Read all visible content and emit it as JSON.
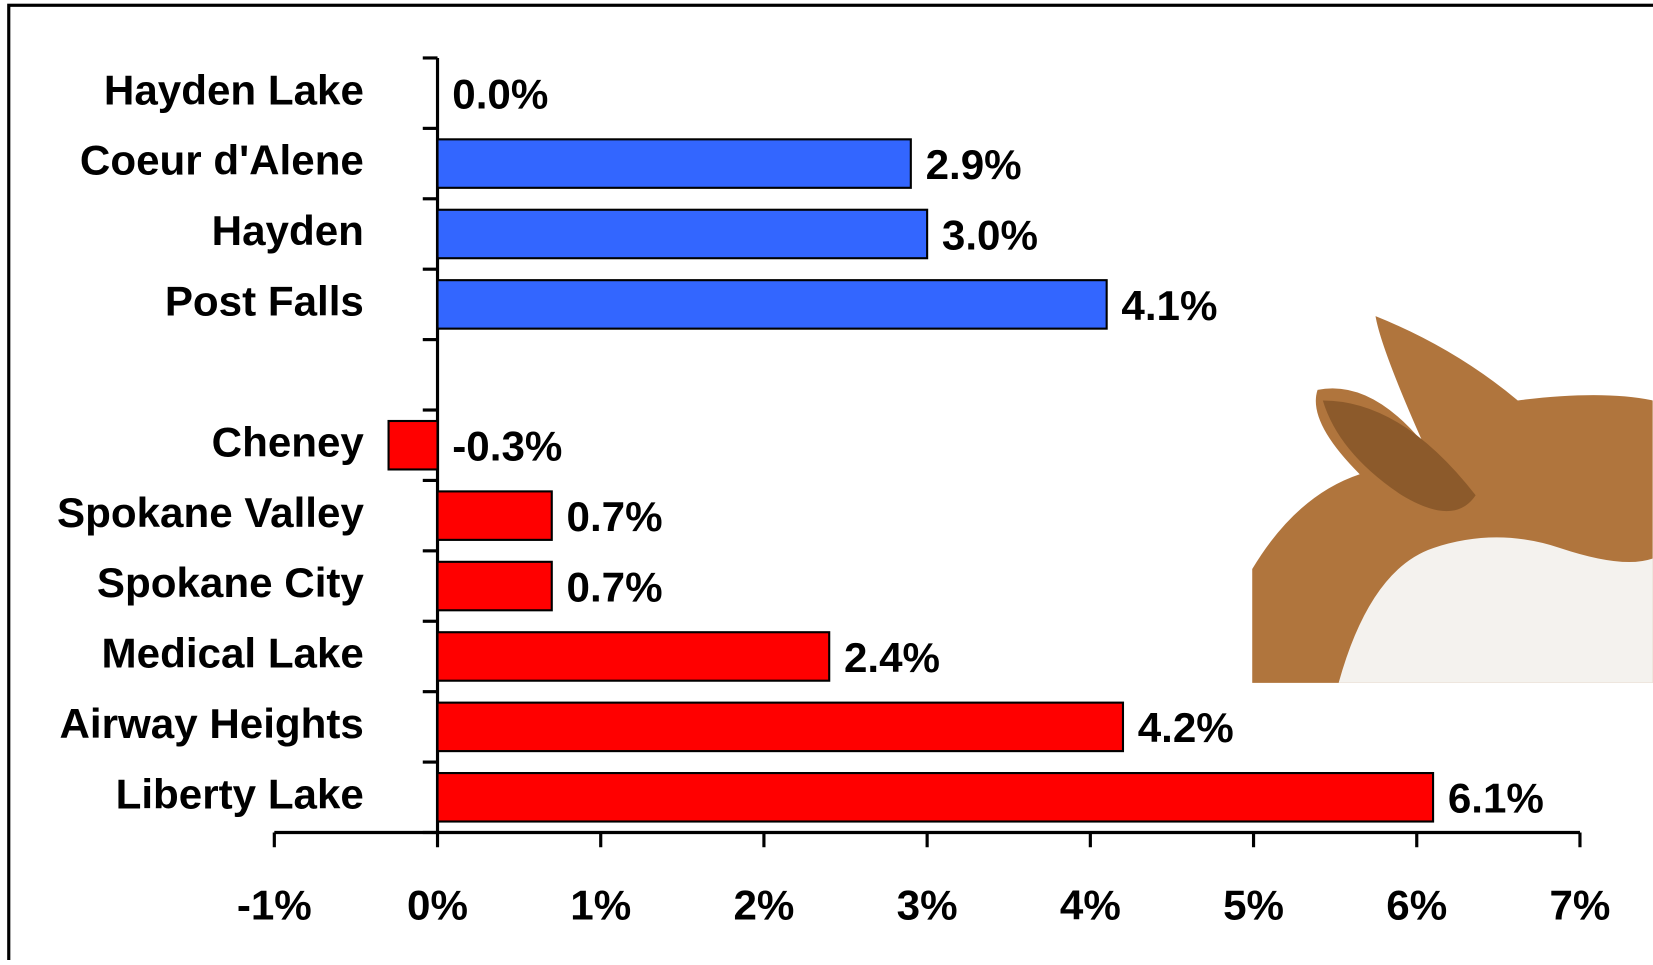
{
  "chart_data": {
    "type": "bar",
    "orientation": "horizontal",
    "categories": [
      "Hayden Lake",
      "Coeur d'Alene",
      "Hayden",
      "Post Falls",
      null,
      "Cheney",
      "Spokane Valley",
      "Spokane City",
      "Medical Lake",
      "Airway Heights",
      "Liberty Lake"
    ],
    "values": [
      0.0,
      2.9,
      3.0,
      4.1,
      null,
      -0.3,
      0.7,
      0.7,
      2.4,
      4.2,
      6.1
    ],
    "value_labels": [
      "0.0%",
      "2.9%",
      "3.0%",
      "4.1%",
      null,
      "-0.3%",
      "0.7%",
      "0.7%",
      "2.4%",
      "4.2%",
      "6.1%"
    ],
    "colors": [
      "#3366ff",
      "#3366ff",
      "#3366ff",
      "#3366ff",
      null,
      "#ff0000",
      "#ff0000",
      "#ff0000",
      "#ff0000",
      "#ff0000",
      "#ff0000"
    ],
    "xlim": [
      -1,
      7
    ],
    "xticks": [
      {
        "value": -1,
        "label": "-1%"
      },
      {
        "value": 0,
        "label": "0%"
      },
      {
        "value": 1,
        "label": "1%"
      },
      {
        "value": 2,
        "label": "2%"
      },
      {
        "value": 3,
        "label": "3%"
      },
      {
        "value": 4,
        "label": "4%"
      },
      {
        "value": 5,
        "label": "5%"
      },
      {
        "value": 6,
        "label": "6%"
      },
      {
        "value": 7,
        "label": "7%"
      }
    ],
    "grid": false
  }
}
